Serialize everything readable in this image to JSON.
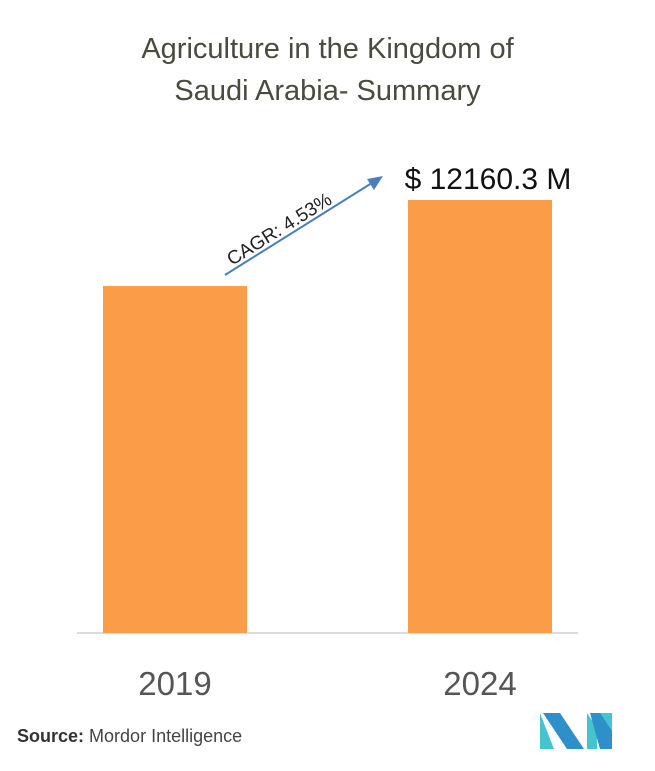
{
  "chart_data": {
    "type": "bar",
    "title": "Agriculture in the Kingdom of Saudi Arabia- Summary",
    "title_lines": [
      "Agriculture in the Kingdom of",
      "Saudi Arabia- Summary"
    ],
    "categories": [
      "2019",
      "2024"
    ],
    "values": [
      9744,
      12160.3
    ],
    "data_labels": [
      "",
      "$ 12160.3 M"
    ],
    "annotation": "CAGR: 4.53%",
    "xlabel": "",
    "ylabel": "",
    "ylim": [
      0,
      12160.3
    ],
    "grid": false,
    "bar_color": "#fb9d46",
    "arrow_color": "#4a7fbd"
  },
  "source": {
    "label": "Source:",
    "value": "Mordor Intelligence"
  },
  "logo_colors": [
    "#2e8fc9",
    "#45c3cf"
  ]
}
